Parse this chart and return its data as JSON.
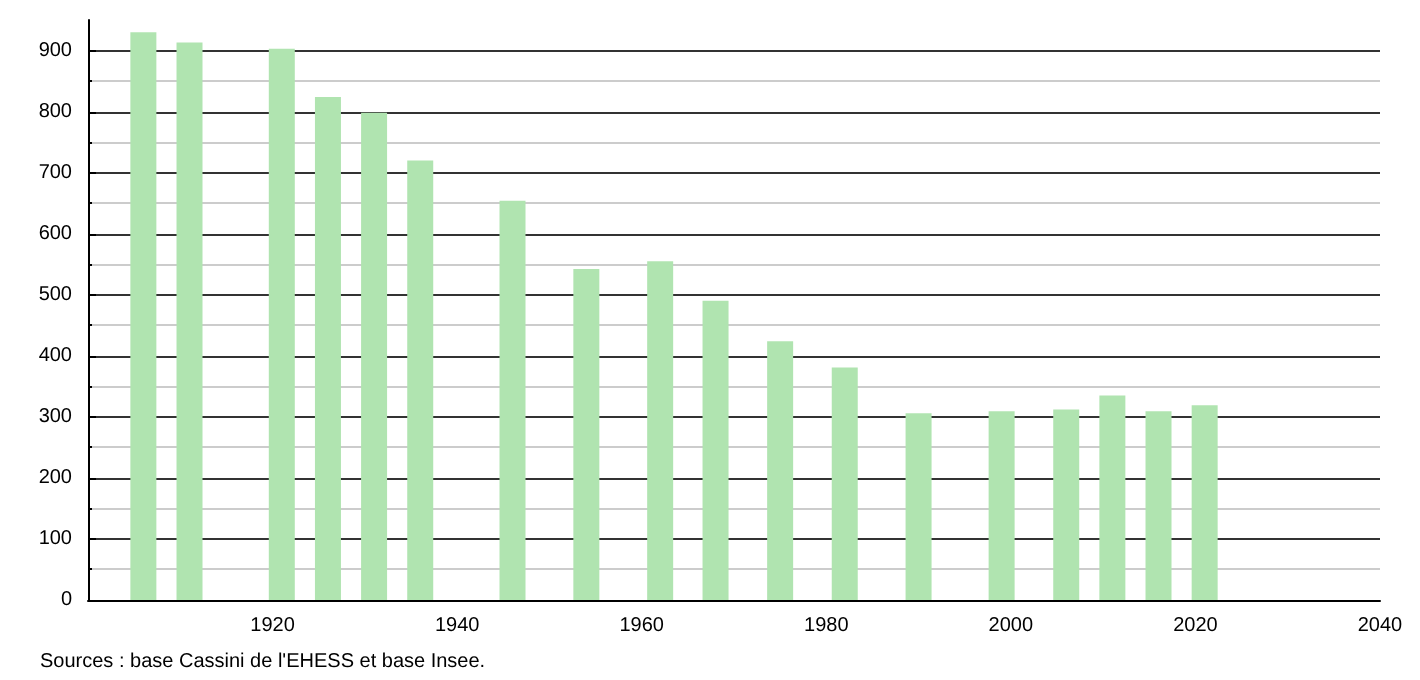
{
  "chart_data": {
    "type": "bar",
    "annotations": [
      "Sources : base Cassini de l'EHESS et base Insee."
    ],
    "x": [
      1906,
      1911,
      1921,
      1926,
      1931,
      1936,
      1946,
      1954,
      1962,
      1968,
      1975,
      1982,
      1990,
      1999,
      2006,
      2011,
      2016,
      2021
    ],
    "values": [
      930,
      913,
      903,
      824,
      798,
      720,
      654,
      542,
      555,
      490,
      424,
      381,
      306,
      309,
      312,
      335,
      309,
      319
    ],
    "color": "#b0e4b0",
    "xlim": [
      1900,
      2040
    ],
    "xticks": [
      1920,
      1940,
      1960,
      1980,
      2000,
      2020,
      2040
    ],
    "ylim": [
      0,
      950
    ],
    "yticks": [
      0,
      100,
      200,
      300,
      400,
      500,
      600,
      700,
      800,
      900
    ],
    "grid": "y"
  }
}
